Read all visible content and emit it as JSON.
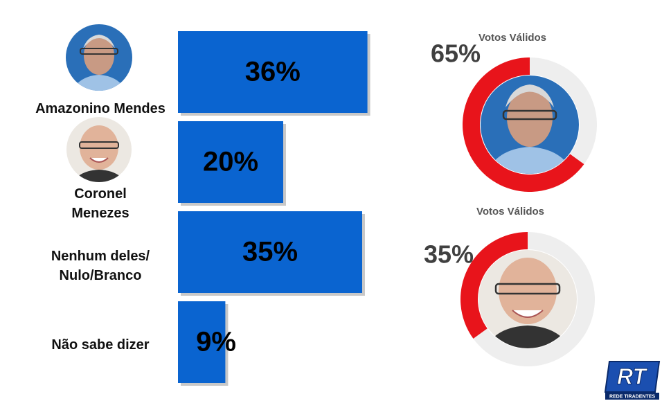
{
  "chart_data": [
    {
      "type": "bar",
      "categories": [
        "Amazonino Mendes",
        "Coronel\nMenezes",
        "Nenhum deles/\nNulo/Branco",
        "Não sabe dizer"
      ],
      "values": [
        36,
        20,
        35,
        9
      ],
      "value_labels": [
        "36%",
        "20%",
        "35%",
        "9%"
      ],
      "color": "#0a64d0"
    },
    {
      "type": "donut",
      "title": "Votos Válidos",
      "values": [
        65,
        35
      ],
      "value_labels": [
        "65%",
        null
      ],
      "colors": [
        "#e8141b",
        "#eeeeee"
      ]
    },
    {
      "type": "donut",
      "title": "Votos Válidos",
      "values": [
        35,
        65
      ],
      "value_labels": [
        "35%",
        null
      ],
      "colors": [
        "#e8141b",
        "#eeeeee"
      ]
    }
  ],
  "logo": {
    "mark": "RT",
    "name": "REDE TIRADENTES"
  }
}
